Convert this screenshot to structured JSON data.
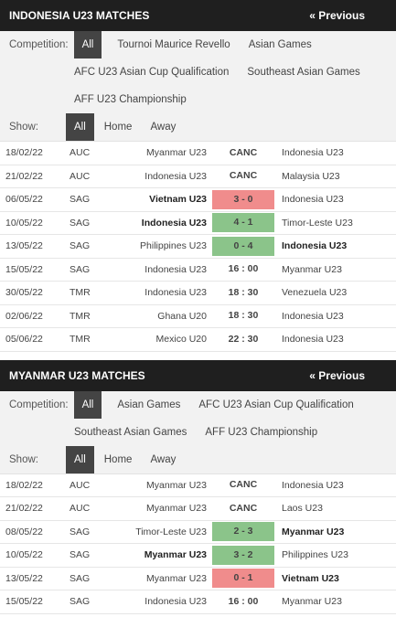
{
  "indonesia": {
    "title": "INDONESIA U23 MATCHES",
    "previous": "« Previous",
    "competition_label": "Competition:",
    "competition_filters": [
      "All",
      "Tournoi Maurice Revello",
      "Asian Games",
      "AFC U23 Asian Cup Qualification",
      "Southeast Asian Games",
      "AFF U23 Championship"
    ],
    "show_label": "Show:",
    "show_filters": [
      "All",
      "Home",
      "Away"
    ],
    "matches": [
      {
        "date": "18/02/22",
        "comp": "AUC",
        "home": "Myanmar U23",
        "score": "CANC",
        "away": "Indonesia U23",
        "result": "",
        "bold": ""
      },
      {
        "date": "21/02/22",
        "comp": "AUC",
        "home": "Indonesia U23",
        "score": "CANC",
        "away": "Malaysia U23",
        "result": "",
        "bold": ""
      },
      {
        "date": "06/05/22",
        "comp": "SAG",
        "home": "Vietnam U23",
        "score": "3 - 0",
        "away": "Indonesia U23",
        "result": "loss",
        "bold": "home"
      },
      {
        "date": "10/05/22",
        "comp": "SAG",
        "home": "Indonesia U23",
        "score": "4 - 1",
        "away": "Timor-Leste U23",
        "result": "win",
        "bold": "home"
      },
      {
        "date": "13/05/22",
        "comp": "SAG",
        "home": "Philippines U23",
        "score": "0 - 4",
        "away": "Indonesia U23",
        "result": "win",
        "bold": "away"
      },
      {
        "date": "15/05/22",
        "comp": "SAG",
        "home": "Indonesia U23",
        "score": "16 : 00",
        "away": "Myanmar U23",
        "result": "",
        "bold": ""
      },
      {
        "date": "30/05/22",
        "comp": "TMR",
        "home": "Indonesia U23",
        "score": "18 : 30",
        "away": "Venezuela U23",
        "result": "",
        "bold": ""
      },
      {
        "date": "02/06/22",
        "comp": "TMR",
        "home": "Ghana U20",
        "score": "18 : 30",
        "away": "Indonesia U23",
        "result": "",
        "bold": ""
      },
      {
        "date": "05/06/22",
        "comp": "TMR",
        "home": "Mexico U20",
        "score": "22 : 30",
        "away": "Indonesia U23",
        "result": "",
        "bold": ""
      }
    ]
  },
  "myanmar": {
    "title": "MYANMAR U23 MATCHES",
    "previous": "« Previous",
    "competition_label": "Competition:",
    "competition_filters": [
      "All",
      "Asian Games",
      "AFC U23 Asian Cup Qualification",
      "Southeast Asian Games",
      "AFF U23 Championship"
    ],
    "show_label": "Show:",
    "show_filters": [
      "All",
      "Home",
      "Away"
    ],
    "matches": [
      {
        "date": "18/02/22",
        "comp": "AUC",
        "home": "Myanmar U23",
        "score": "CANC",
        "away": "Indonesia U23",
        "result": "",
        "bold": ""
      },
      {
        "date": "21/02/22",
        "comp": "AUC",
        "home": "Myanmar U23",
        "score": "CANC",
        "away": "Laos U23",
        "result": "",
        "bold": ""
      },
      {
        "date": "08/05/22",
        "comp": "SAG",
        "home": "Timor-Leste U23",
        "score": "2 - 3",
        "away": "Myanmar U23",
        "result": "win",
        "bold": "away"
      },
      {
        "date": "10/05/22",
        "comp": "SAG",
        "home": "Myanmar U23",
        "score": "3 - 2",
        "away": "Philippines U23",
        "result": "win",
        "bold": "home"
      },
      {
        "date": "13/05/22",
        "comp": "SAG",
        "home": "Myanmar U23",
        "score": "0 - 1",
        "away": "Vietnam U23",
        "result": "loss",
        "bold": "away"
      },
      {
        "date": "15/05/22",
        "comp": "SAG",
        "home": "Indonesia U23",
        "score": "16 : 00",
        "away": "Myanmar U23",
        "result": "",
        "bold": ""
      }
    ]
  }
}
